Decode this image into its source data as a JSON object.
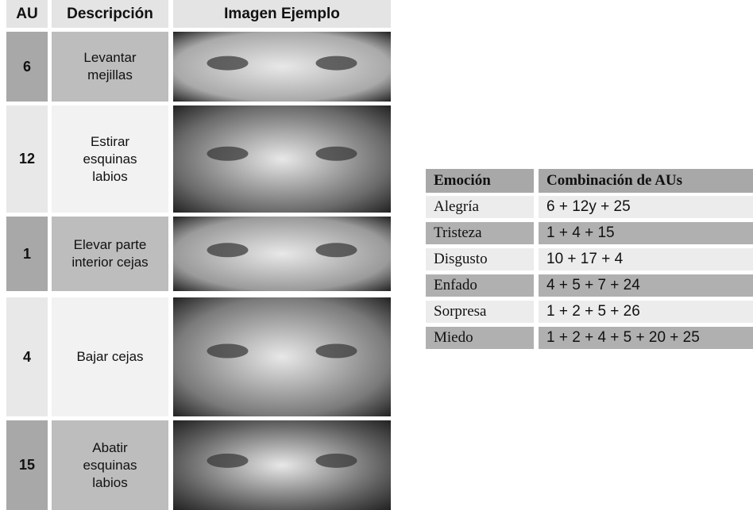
{
  "au_table": {
    "headers": [
      "AU",
      "Descripción",
      "Imagen Ejemplo"
    ],
    "rows": [
      [
        "6",
        "Levantar mejillas"
      ],
      [
        "12",
        "Estirar esquinas labios"
      ],
      [
        "1",
        "Elevar parte interior cejas"
      ],
      [
        "4",
        "Bajar cejas"
      ],
      [
        "15",
        "Abatir esquinas labios"
      ]
    ]
  },
  "emotion_table": {
    "headers": [
      "Emoción",
      "Combinación de AUs"
    ],
    "rows": [
      [
        "Alegría",
        "6 + 12y + 25"
      ],
      [
        "Tristeza",
        "1 + 4 + 15"
      ],
      [
        "Disgusto",
        "10 + 17 + 4"
      ],
      [
        "Enfado",
        "4 + 5 + 7 + 24"
      ],
      [
        "Sorpresa",
        "1 + 2 + 5 + 26"
      ],
      [
        "Miedo",
        "1 + 2 + 4 + 5 + 20 + 25"
      ]
    ]
  }
}
